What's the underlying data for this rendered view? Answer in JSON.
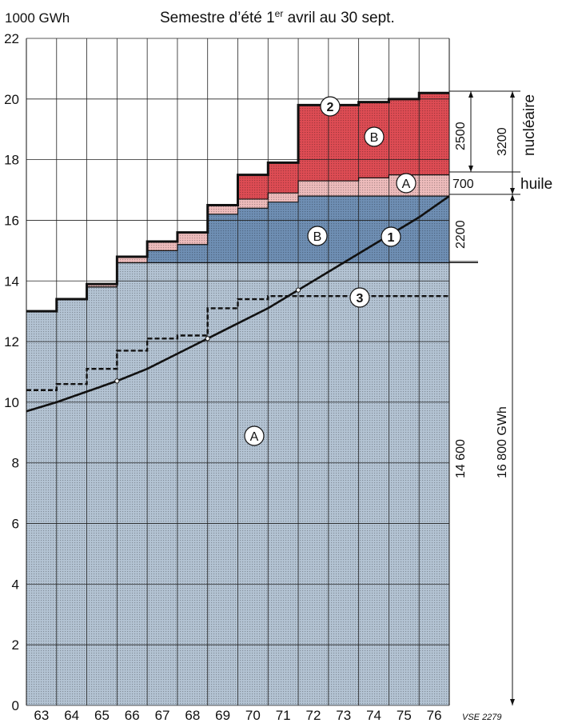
{
  "chart_data": {
    "type": "area",
    "title": "Semestre d’été 1er avril au 30 sept.",
    "title_main": "Semestre d’été 1",
    "title_sup": "er",
    "title_rest": " avril au 30 sept.",
    "ylabel": "1000 GWh",
    "ylim": [
      0,
      22
    ],
    "y_ticks": [
      0,
      2,
      4,
      6,
      8,
      10,
      12,
      14,
      16,
      18,
      20,
      22
    ],
    "categories": [
      "63",
      "64",
      "65",
      "66",
      "67",
      "68",
      "69",
      "70",
      "71",
      "72",
      "73",
      "74",
      "75",
      "76"
    ],
    "grid": true,
    "colors": {
      "hydro_a": "#b4c4d4",
      "hydro_b": "#6f8fb4",
      "oil_a": "#eebcbc",
      "nuclear_b": "#de4c54",
      "line": "#111111"
    },
    "series": [
      {
        "key": "hydro_a",
        "values": [
          13.0,
          13.4,
          13.8,
          14.6,
          14.6,
          14.6,
          14.6,
          14.6,
          14.6,
          14.6,
          14.6,
          14.6,
          14.6,
          14.6
        ]
      },
      {
        "key": "hydro_b",
        "values": [
          0,
          0,
          0,
          0,
          0.4,
          0.6,
          1.6,
          1.8,
          2.0,
          2.2,
          2.2,
          2.2,
          2.2,
          2.2
        ]
      },
      {
        "key": "oil_a",
        "values": [
          0,
          0,
          0.1,
          0.2,
          0.3,
          0.4,
          0.3,
          0.3,
          0.3,
          0.5,
          0.5,
          0.6,
          0.7,
          0.7
        ]
      },
      {
        "key": "nuclear_b",
        "values": [
          0,
          0,
          0,
          0,
          0,
          0,
          0,
          0.8,
          1.0,
          2.5,
          2.5,
          2.5,
          2.5,
          2.7
        ]
      }
    ],
    "line_1": {
      "label": "1",
      "x": [
        62.5,
        63.5,
        64.5,
        65.5,
        66.5,
        67.5,
        68.5,
        69.5,
        70.5,
        71.5,
        72.5,
        73.5,
        74.5,
        75.5,
        76.5
      ],
      "y": [
        9.7,
        10.0,
        10.35,
        10.7,
        11.1,
        11.6,
        12.1,
        12.6,
        13.1,
        13.7,
        14.3,
        14.9,
        15.5,
        16.1,
        16.8
      ]
    },
    "line_3": {
      "label": "3",
      "x": [
        62.5,
        63.5,
        63.5,
        64.5,
        64.5,
        65.5,
        65.5,
        66.5,
        66.5,
        67.5,
        67.5,
        68.5,
        68.5,
        69.5,
        69.5,
        70.5,
        70.5,
        76.5
      ],
      "y": [
        10.4,
        10.4,
        10.6,
        10.6,
        11.1,
        11.1,
        11.7,
        11.7,
        12.1,
        12.1,
        12.2,
        12.2,
        13.1,
        13.1,
        13.4,
        13.4,
        13.5,
        13.5
      ]
    },
    "annotations": {
      "label_2": "2",
      "region_a_hydro": "A",
      "region_b_hydro": "B",
      "region_a_oil": "A",
      "region_b_nuclear": "B",
      "val_2500": "2500",
      "val_700": "700",
      "val_2200": "2200",
      "val_14600": "14 600",
      "val_3200": "3200",
      "val_16800": "16 800 GWh",
      "nucleaire": "nucléaire",
      "huile": "huile",
      "ref": "VSE 2279"
    }
  }
}
